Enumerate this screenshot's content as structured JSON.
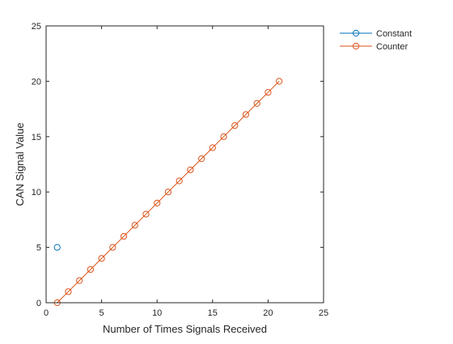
{
  "chart_data": {
    "type": "line",
    "xlabel": "Number of Times Signals Received",
    "ylabel": "CAN Signal Value",
    "xlim": [
      0,
      25
    ],
    "ylim": [
      0,
      25
    ],
    "xticks": [
      0,
      5,
      10,
      15,
      20,
      25
    ],
    "yticks": [
      0,
      5,
      10,
      15,
      20,
      25
    ],
    "grid": false,
    "box": true,
    "legend_position": "outside top-right",
    "series": [
      {
        "name": "Constant",
        "color": "#0072BD",
        "marker": "circle",
        "x": [
          1
        ],
        "y": [
          5
        ]
      },
      {
        "name": "Counter",
        "color": "#D95319",
        "marker": "circle",
        "x": [
          1,
          2,
          3,
          4,
          5,
          6,
          7,
          8,
          9,
          10,
          11,
          12,
          13,
          14,
          15,
          16,
          17,
          18,
          19,
          20,
          21
        ],
        "y": [
          0,
          1,
          2,
          3,
          4,
          5,
          6,
          7,
          8,
          9,
          10,
          11,
          12,
          13,
          14,
          15,
          16,
          17,
          18,
          19,
          20
        ]
      }
    ]
  }
}
